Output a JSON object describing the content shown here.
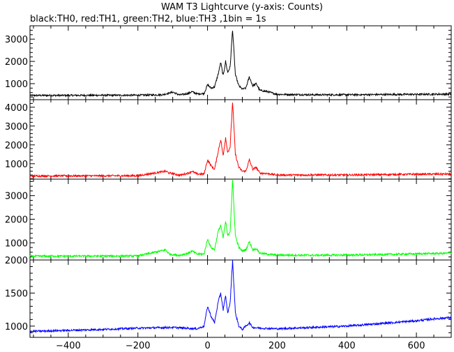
{
  "chart_data": {
    "type": "line",
    "title": "WAM T3 Lightcurve (y-axis: Counts)",
    "subtitle": "black:TH0, red:TH1, green:TH2, blue:TH3 ,1bin = 1s",
    "xlabel": "",
    "xlim": [
      -510,
      700
    ],
    "x_ticks": [
      -400,
      -200,
      0,
      200,
      400,
      600
    ],
    "x_tick_labels": [
      "−400",
      "−200",
      "0",
      "200",
      "400",
      "600"
    ],
    "grid": false,
    "panels": [
      {
        "name": "TH0",
        "color": "#000000",
        "ylim": [
          280,
          3600
        ],
        "y_ticks": [
          1000,
          2000,
          3000
        ],
        "y_tick_labels": [
          "1000",
          "2000",
          "3000"
        ],
        "x": [
          -510,
          -200,
          -130,
          -115,
          -100,
          -80,
          -55,
          -45,
          -30,
          -10,
          0,
          10,
          20,
          30,
          38,
          45,
          52,
          58,
          65,
          72,
          80,
          90,
          100,
          110,
          120,
          130,
          140,
          150,
          170,
          200,
          300,
          400,
          500,
          600,
          700
        ],
        "y": [
          470,
          480,
          500,
          560,
          620,
          490,
          560,
          640,
          540,
          560,
          950,
          800,
          850,
          1400,
          1950,
          1350,
          2000,
          1500,
          1750,
          3450,
          1400,
          900,
          750,
          800,
          1300,
          900,
          1000,
          700,
          650,
          520,
          500,
          500,
          510,
          520,
          530
        ]
      },
      {
        "name": "TH1",
        "color": "#ff0000",
        "ylim": [
          180,
          4400
        ],
        "y_ticks": [
          1000,
          2000,
          3000,
          4000
        ],
        "y_tick_labels": [
          "1000",
          "2000",
          "3000",
          "4000"
        ],
        "x": [
          -510,
          -200,
          -120,
          -110,
          -100,
          -80,
          -55,
          -45,
          -30,
          -10,
          0,
          10,
          20,
          30,
          38,
          45,
          52,
          58,
          65,
          72,
          80,
          90,
          100,
          110,
          120,
          130,
          140,
          150,
          170,
          200,
          300,
          400,
          500,
          600,
          700
        ],
        "y": [
          350,
          360,
          600,
          500,
          480,
          380,
          500,
          600,
          450,
          450,
          1200,
          900,
          700,
          1600,
          2300,
          1400,
          2400,
          1600,
          1900,
          4300,
          1500,
          800,
          600,
          600,
          1200,
          700,
          800,
          500,
          480,
          400,
          400,
          400,
          420,
          440,
          450
        ]
      },
      {
        "name": "TH2",
        "color": "#00ff00",
        "ylim": [
          270,
          3700
        ],
        "y_ticks": [
          1000,
          2000,
          3000
        ],
        "y_tick_labels": [
          "1000",
          "2000",
          "3000"
        ],
        "x": [
          -510,
          -200,
          -120,
          -110,
          -100,
          -80,
          -55,
          -45,
          -30,
          -10,
          0,
          10,
          20,
          30,
          38,
          45,
          52,
          58,
          65,
          72,
          80,
          90,
          100,
          110,
          120,
          130,
          140,
          150,
          170,
          200,
          300,
          400,
          500,
          600,
          700
        ],
        "y": [
          430,
          440,
          700,
          520,
          500,
          470,
          560,
          650,
          520,
          520,
          1150,
          800,
          700,
          1450,
          1750,
          1200,
          1900,
          1300,
          1500,
          3650,
          1300,
          800,
          650,
          700,
          1050,
          700,
          750,
          560,
          520,
          480,
          470,
          480,
          500,
          530,
          560
        ]
      },
      {
        "name": "TH3",
        "color": "#0000ff",
        "ylim": [
          830,
          2000
        ],
        "y_ticks": [
          1000,
          1500,
          2000
        ],
        "y_tick_labels": [
          "1000",
          "1500",
          "2000"
        ],
        "x": [
          -510,
          -300,
          -200,
          -100,
          -30,
          -10,
          0,
          10,
          20,
          30,
          38,
          45,
          52,
          58,
          65,
          72,
          80,
          90,
          100,
          110,
          120,
          130,
          150,
          200,
          300,
          400,
          500,
          600,
          650,
          700
        ],
        "y": [
          920,
          950,
          970,
          980,
          960,
          1000,
          1300,
          1150,
          1050,
          1350,
          1500,
          1250,
          1450,
          1200,
          1350,
          2000,
          1200,
          1000,
          950,
          1000,
          1050,
          980,
          970,
          960,
          980,
          1000,
          1040,
          1080,
          1110,
          1130
        ]
      }
    ]
  }
}
